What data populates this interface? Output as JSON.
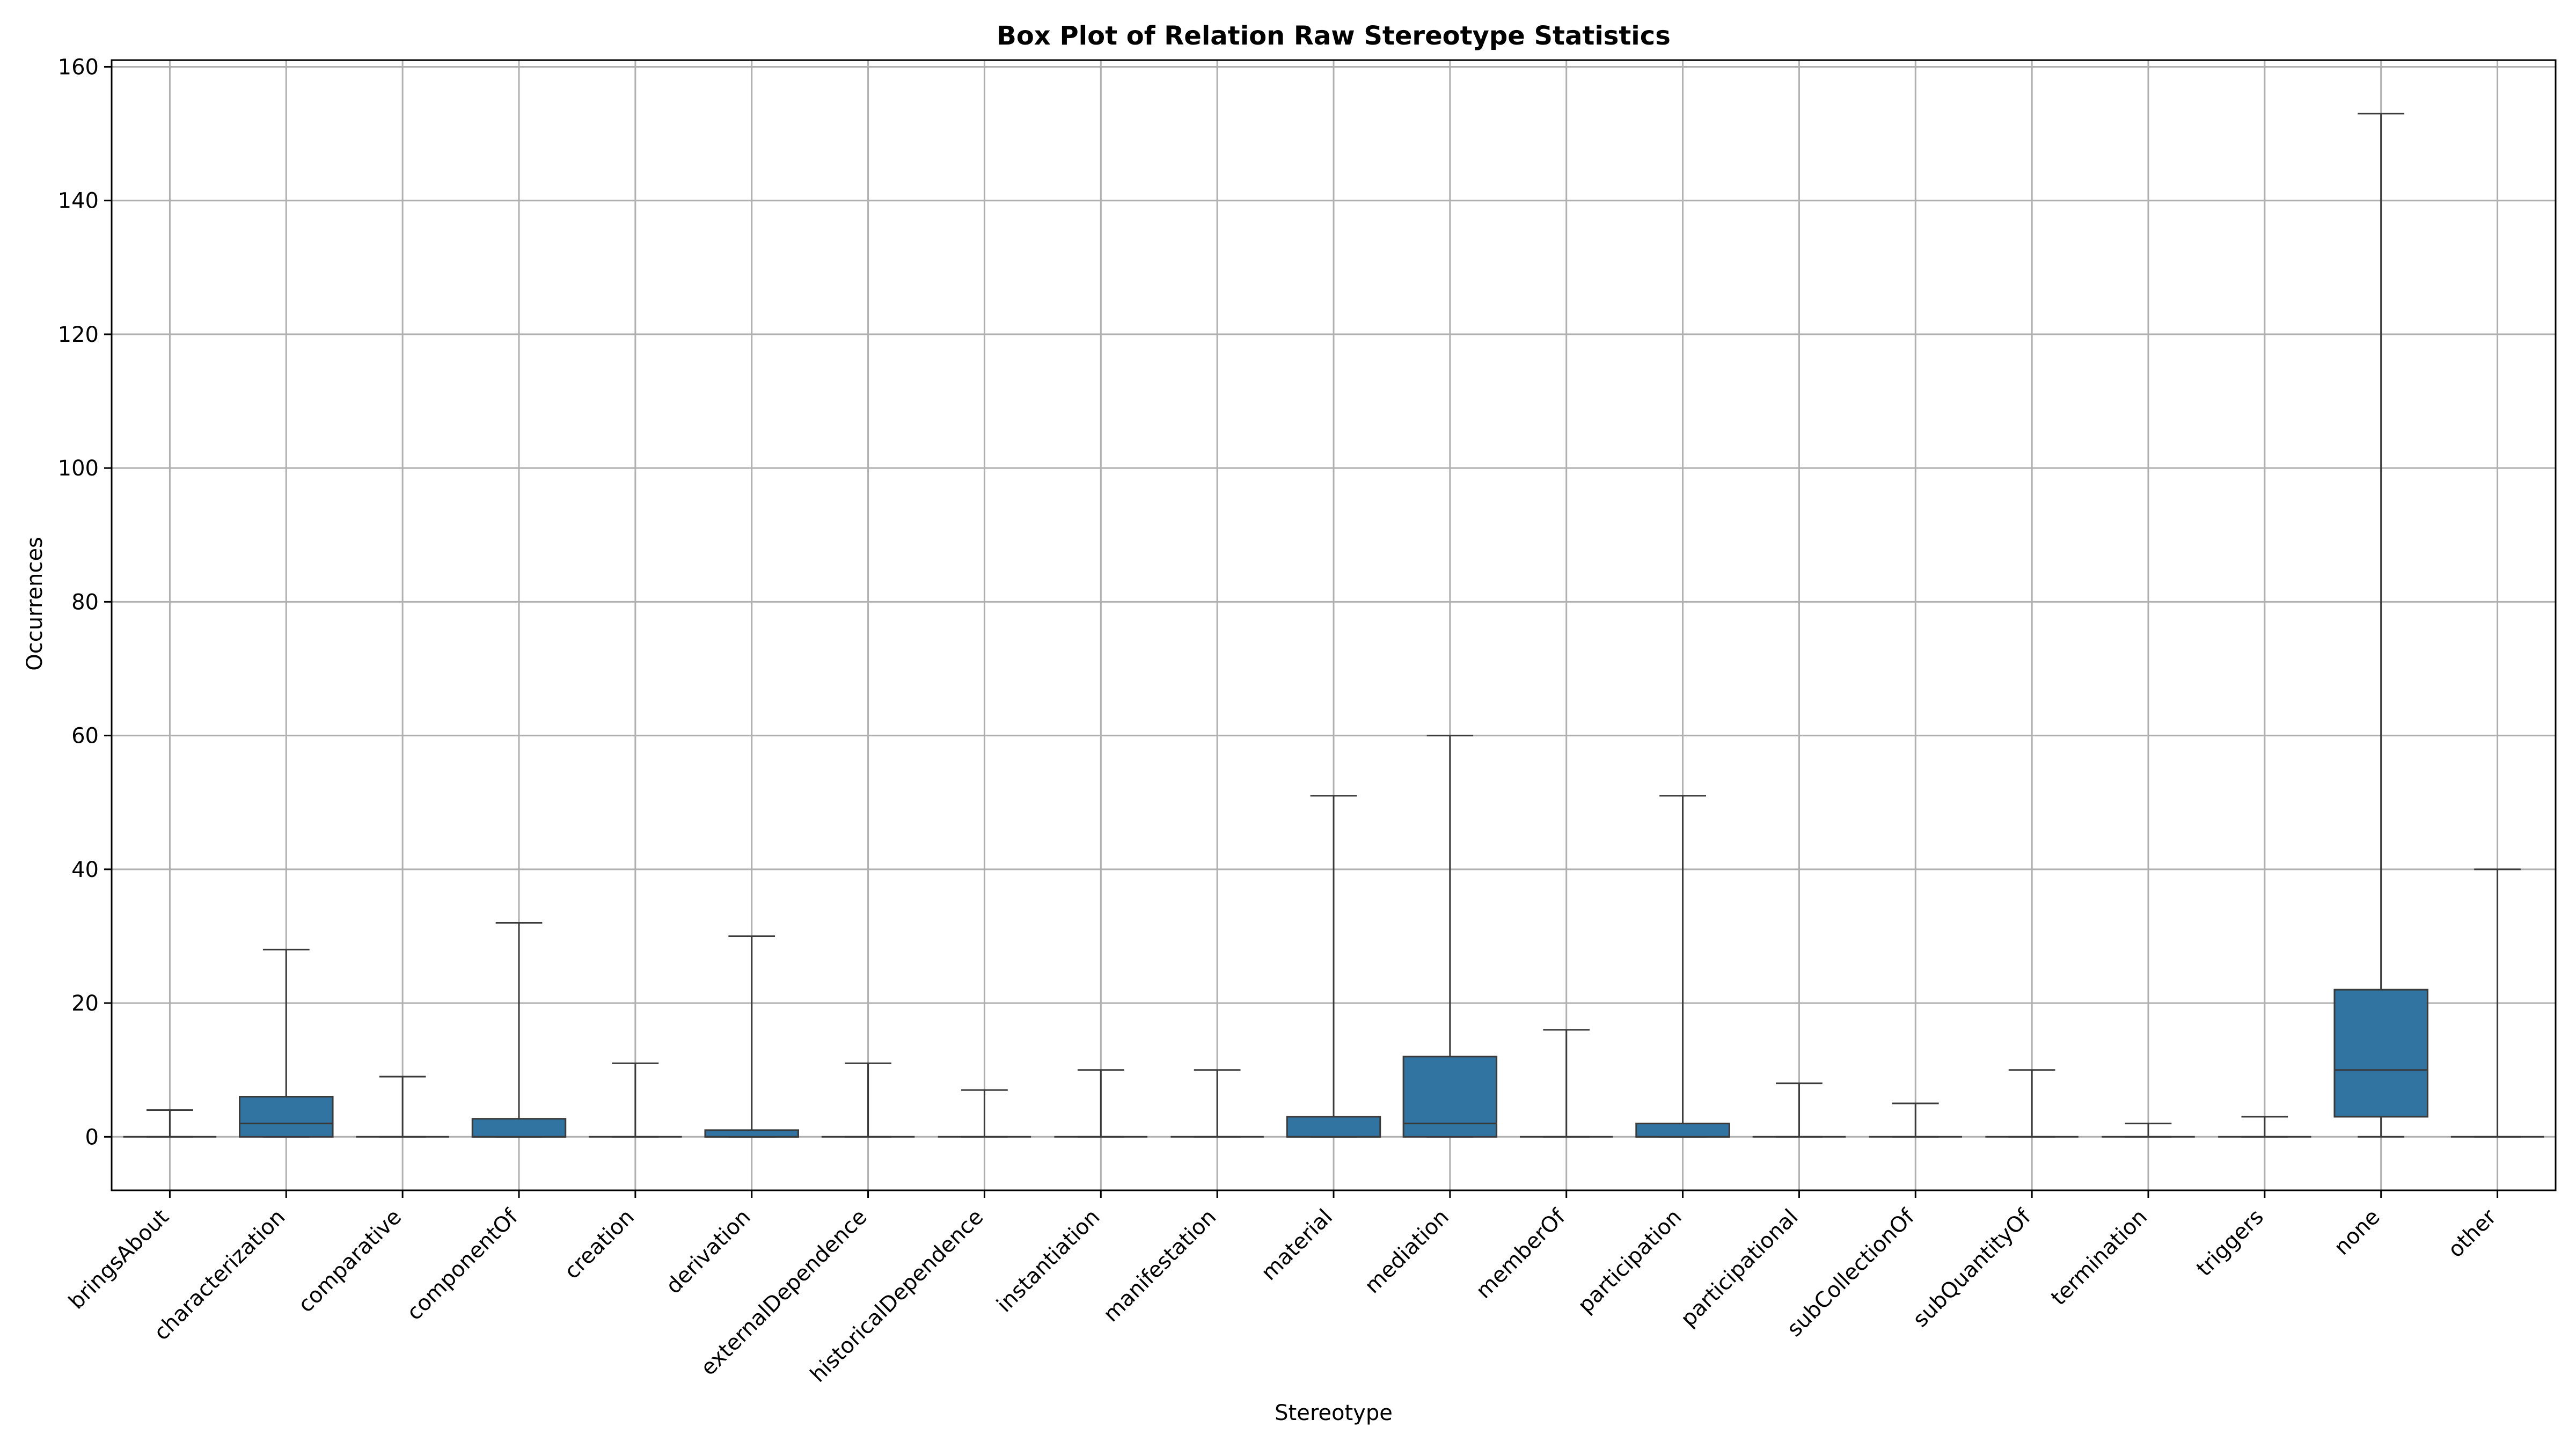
{
  "chart_data": {
    "type": "box",
    "title": "Box Plot of Relation Raw Stereotype Statistics",
    "xlabel": "Stereotype",
    "ylabel": "Occurrences",
    "ylim": [
      -8,
      161
    ],
    "yticks": [
      0,
      20,
      40,
      60,
      80,
      100,
      120,
      140,
      160
    ],
    "grid": true,
    "box_color": "#3274a1",
    "line_color": "#3a3a3a",
    "grid_color": "#b0b0b0",
    "categories": [
      "bringsAbout",
      "characterization",
      "comparative",
      "componentOf",
      "creation",
      "derivation",
      "externalDependence",
      "historicalDependence",
      "instantiation",
      "manifestation",
      "material",
      "mediation",
      "memberOf",
      "participation",
      "participational",
      "subCollectionOf",
      "subQuantityOf",
      "termination",
      "triggers",
      "none",
      "other"
    ],
    "category_colors": {
      "none": "#0000ff",
      "other": "#ff0000"
    },
    "boxes": [
      {
        "min": 0,
        "q1": 0,
        "median": 0,
        "q3": 0,
        "max": 4
      },
      {
        "min": 0,
        "q1": 0,
        "median": 2,
        "q3": 6,
        "max": 28
      },
      {
        "min": 0,
        "q1": 0,
        "median": 0,
        "q3": 0,
        "max": 9
      },
      {
        "min": 0,
        "q1": 0,
        "median": 0,
        "q3": 2.7,
        "max": 32
      },
      {
        "min": 0,
        "q1": 0,
        "median": 0,
        "q3": 0,
        "max": 11
      },
      {
        "min": 0,
        "q1": 0,
        "median": 0,
        "q3": 1,
        "max": 30
      },
      {
        "min": 0,
        "q1": 0,
        "median": 0,
        "q3": 0,
        "max": 11
      },
      {
        "min": 0,
        "q1": 0,
        "median": 0,
        "q3": 0,
        "max": 7
      },
      {
        "min": 0,
        "q1": 0,
        "median": 0,
        "q3": 0,
        "max": 10
      },
      {
        "min": 0,
        "q1": 0,
        "median": 0,
        "q3": 0,
        "max": 10
      },
      {
        "min": 0,
        "q1": 0,
        "median": 0,
        "q3": 3,
        "max": 51
      },
      {
        "min": 0,
        "q1": 0,
        "median": 2,
        "q3": 12,
        "max": 60
      },
      {
        "min": 0,
        "q1": 0,
        "median": 0,
        "q3": 0,
        "max": 16
      },
      {
        "min": 0,
        "q1": 0,
        "median": 0,
        "q3": 2,
        "max": 51
      },
      {
        "min": 0,
        "q1": 0,
        "median": 0,
        "q3": 0,
        "max": 8
      },
      {
        "min": 0,
        "q1": 0,
        "median": 0,
        "q3": 0,
        "max": 5
      },
      {
        "min": 0,
        "q1": 0,
        "median": 0,
        "q3": 0,
        "max": 10
      },
      {
        "min": 0,
        "q1": 0,
        "median": 0,
        "q3": 0,
        "max": 2
      },
      {
        "min": 0,
        "q1": 0,
        "median": 0,
        "q3": 0,
        "max": 3
      },
      {
        "min": 0,
        "q1": 3,
        "median": 10,
        "q3": 22,
        "max": 153
      },
      {
        "min": 0,
        "q1": 0,
        "median": 0,
        "q3": 0,
        "max": 40
      }
    ]
  }
}
